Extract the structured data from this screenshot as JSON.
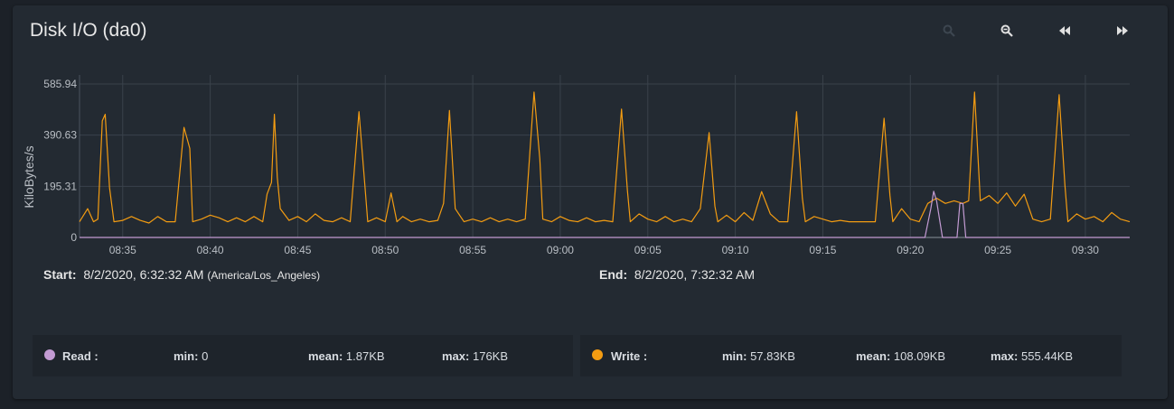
{
  "title": "Disk I/O (da0)",
  "toolbar": [
    "zoom-in-icon",
    "zoom-out-icon",
    "step-back-icon",
    "step-forward-icon"
  ],
  "range": {
    "start_label": "Start:",
    "start_value": "8/2/2020, 6:32:32 AM",
    "timezone": "(America/Los_Angeles)",
    "end_label": "End:",
    "end_value": "8/2/2020, 7:32:32 AM"
  },
  "legend": [
    {
      "name": "Read :",
      "color": "#c39bd3",
      "min_label": "min:",
      "min": "0",
      "mean_label": "mean:",
      "mean": "1.87KB",
      "max_label": "max:",
      "max": "176KB"
    },
    {
      "name": "Write :",
      "color": "#f39c12",
      "min_label": "min:",
      "min": "57.83KB",
      "mean_label": "mean:",
      "mean": "108.09KB",
      "max_label": "max:",
      "max": "555.44KB"
    }
  ],
  "chart_data": {
    "type": "line",
    "ylabel": "KiloBytes/s",
    "ylim": [
      0,
      585.94
    ],
    "yticks": [
      0,
      195.31,
      390.63,
      585.94
    ],
    "ytick_labels": [
      "0",
      "195.31",
      "390.63",
      "585.94"
    ],
    "xlim": [
      "08:32:32",
      "09:32:32"
    ],
    "xtick_labels": [
      "08:35",
      "08:40",
      "08:45",
      "08:50",
      "08:55",
      "09:00",
      "09:05",
      "09:10",
      "09:15",
      "09:20",
      "09:25",
      "09:30"
    ],
    "grid": true,
    "series": [
      {
        "name": "Write",
        "color": "#f39c12",
        "points": [
          [
            "08:32:32",
            60
          ],
          [
            "08:33:00",
            110
          ],
          [
            "08:33:20",
            60
          ],
          [
            "08:33:35",
            70
          ],
          [
            "08:33:50",
            445
          ],
          [
            "08:34:00",
            470
          ],
          [
            "08:34:15",
            190
          ],
          [
            "08:34:30",
            60
          ],
          [
            "08:35:00",
            65
          ],
          [
            "08:35:30",
            80
          ],
          [
            "08:36:00",
            65
          ],
          [
            "08:36:30",
            55
          ],
          [
            "08:37:00",
            80
          ],
          [
            "08:37:30",
            60
          ],
          [
            "08:38:00",
            60
          ],
          [
            "08:38:30",
            420
          ],
          [
            "08:38:50",
            340
          ],
          [
            "08:39:00",
            60
          ],
          [
            "08:39:30",
            70
          ],
          [
            "08:40:00",
            85
          ],
          [
            "08:40:30",
            75
          ],
          [
            "08:41:00",
            60
          ],
          [
            "08:41:30",
            75
          ],
          [
            "08:42:00",
            60
          ],
          [
            "08:42:30",
            80
          ],
          [
            "08:43:00",
            60
          ],
          [
            "08:43:15",
            165
          ],
          [
            "08:43:30",
            210
          ],
          [
            "08:43:40",
            470
          ],
          [
            "08:43:50",
            230
          ],
          [
            "08:44:00",
            110
          ],
          [
            "08:44:30",
            65
          ],
          [
            "08:45:00",
            80
          ],
          [
            "08:45:30",
            60
          ],
          [
            "08:46:00",
            90
          ],
          [
            "08:46:30",
            65
          ],
          [
            "08:47:00",
            60
          ],
          [
            "08:47:30",
            75
          ],
          [
            "08:48:00",
            60
          ],
          [
            "08:48:30",
            480
          ],
          [
            "08:48:50",
            200
          ],
          [
            "08:49:00",
            60
          ],
          [
            "08:49:30",
            75
          ],
          [
            "08:50:00",
            60
          ],
          [
            "08:50:20",
            170
          ],
          [
            "08:50:40",
            60
          ],
          [
            "08:51:00",
            80
          ],
          [
            "08:51:30",
            60
          ],
          [
            "08:52:00",
            70
          ],
          [
            "08:52:30",
            60
          ],
          [
            "08:53:00",
            65
          ],
          [
            "08:53:20",
            130
          ],
          [
            "08:53:40",
            485
          ],
          [
            "08:54:00",
            110
          ],
          [
            "08:54:30",
            60
          ],
          [
            "08:55:00",
            70
          ],
          [
            "08:55:30",
            60
          ],
          [
            "08:56:00",
            75
          ],
          [
            "08:56:30",
            60
          ],
          [
            "08:57:00",
            70
          ],
          [
            "08:57:30",
            60
          ],
          [
            "08:58:00",
            70
          ],
          [
            "08:58:30",
            555
          ],
          [
            "08:58:50",
            300
          ],
          [
            "08:59:00",
            70
          ],
          [
            "08:59:30",
            60
          ],
          [
            "09:00:00",
            80
          ],
          [
            "09:00:30",
            65
          ],
          [
            "09:01:00",
            60
          ],
          [
            "09:01:30",
            75
          ],
          [
            "09:02:00",
            60
          ],
          [
            "09:02:30",
            65
          ],
          [
            "09:03:00",
            60
          ],
          [
            "09:03:30",
            490
          ],
          [
            "09:03:50",
            180
          ],
          [
            "09:04:00",
            60
          ],
          [
            "09:04:30",
            90
          ],
          [
            "09:05:00",
            70
          ],
          [
            "09:05:30",
            60
          ],
          [
            "09:06:00",
            80
          ],
          [
            "09:06:30",
            60
          ],
          [
            "09:07:00",
            70
          ],
          [
            "09:07:30",
            60
          ],
          [
            "09:08:00",
            110
          ],
          [
            "09:08:30",
            400
          ],
          [
            "09:08:50",
            120
          ],
          [
            "09:09:00",
            60
          ],
          [
            "09:09:30",
            85
          ],
          [
            "09:10:00",
            60
          ],
          [
            "09:10:30",
            95
          ],
          [
            "09:11:00",
            65
          ],
          [
            "09:11:30",
            175
          ],
          [
            "09:12:00",
            90
          ],
          [
            "09:12:30",
            60
          ],
          [
            "09:13:00",
            60
          ],
          [
            "09:13:30",
            480
          ],
          [
            "09:13:50",
            150
          ],
          [
            "09:14:00",
            60
          ],
          [
            "09:14:30",
            80
          ],
          [
            "09:15:00",
            70
          ],
          [
            "09:15:30",
            60
          ],
          [
            "09:16:00",
            65
          ],
          [
            "09:16:30",
            60
          ],
          [
            "09:17:00",
            60
          ],
          [
            "09:17:30",
            60
          ],
          [
            "09:18:00",
            60
          ],
          [
            "09:18:30",
            455
          ],
          [
            "09:18:50",
            160
          ],
          [
            "09:19:00",
            60
          ],
          [
            "09:19:30",
            110
          ],
          [
            "09:20:00",
            70
          ],
          [
            "09:20:30",
            60
          ],
          [
            "09:21:00",
            130
          ],
          [
            "09:21:30",
            150
          ],
          [
            "09:22:00",
            130
          ],
          [
            "09:22:30",
            140
          ],
          [
            "09:23:00",
            130
          ],
          [
            "09:23:20",
            140
          ],
          [
            "09:23:40",
            555
          ],
          [
            "09:24:00",
            140
          ],
          [
            "09:24:30",
            160
          ],
          [
            "09:25:00",
            130
          ],
          [
            "09:25:30",
            170
          ],
          [
            "09:26:00",
            120
          ],
          [
            "09:26:30",
            165
          ],
          [
            "09:27:00",
            70
          ],
          [
            "09:27:30",
            60
          ],
          [
            "09:28:00",
            70
          ],
          [
            "09:28:30",
            545
          ],
          [
            "09:28:50",
            200
          ],
          [
            "09:29:00",
            60
          ],
          [
            "09:29:30",
            90
          ],
          [
            "09:30:00",
            70
          ],
          [
            "09:30:30",
            80
          ],
          [
            "09:31:00",
            60
          ],
          [
            "09:31:30",
            95
          ],
          [
            "09:32:00",
            70
          ],
          [
            "09:32:32",
            60
          ]
        ]
      },
      {
        "name": "Read",
        "color": "#c39bd3",
        "points": [
          [
            "08:32:32",
            0
          ],
          [
            "09:20:50",
            0
          ],
          [
            "09:21:10",
            110
          ],
          [
            "09:21:20",
            176
          ],
          [
            "09:21:30",
            140
          ],
          [
            "09:21:50",
            0
          ],
          [
            "09:22:40",
            0
          ],
          [
            "09:22:50",
            130
          ],
          [
            "09:23:00",
            130
          ],
          [
            "09:23:10",
            0
          ],
          [
            "09:32:32",
            0
          ]
        ]
      }
    ]
  }
}
